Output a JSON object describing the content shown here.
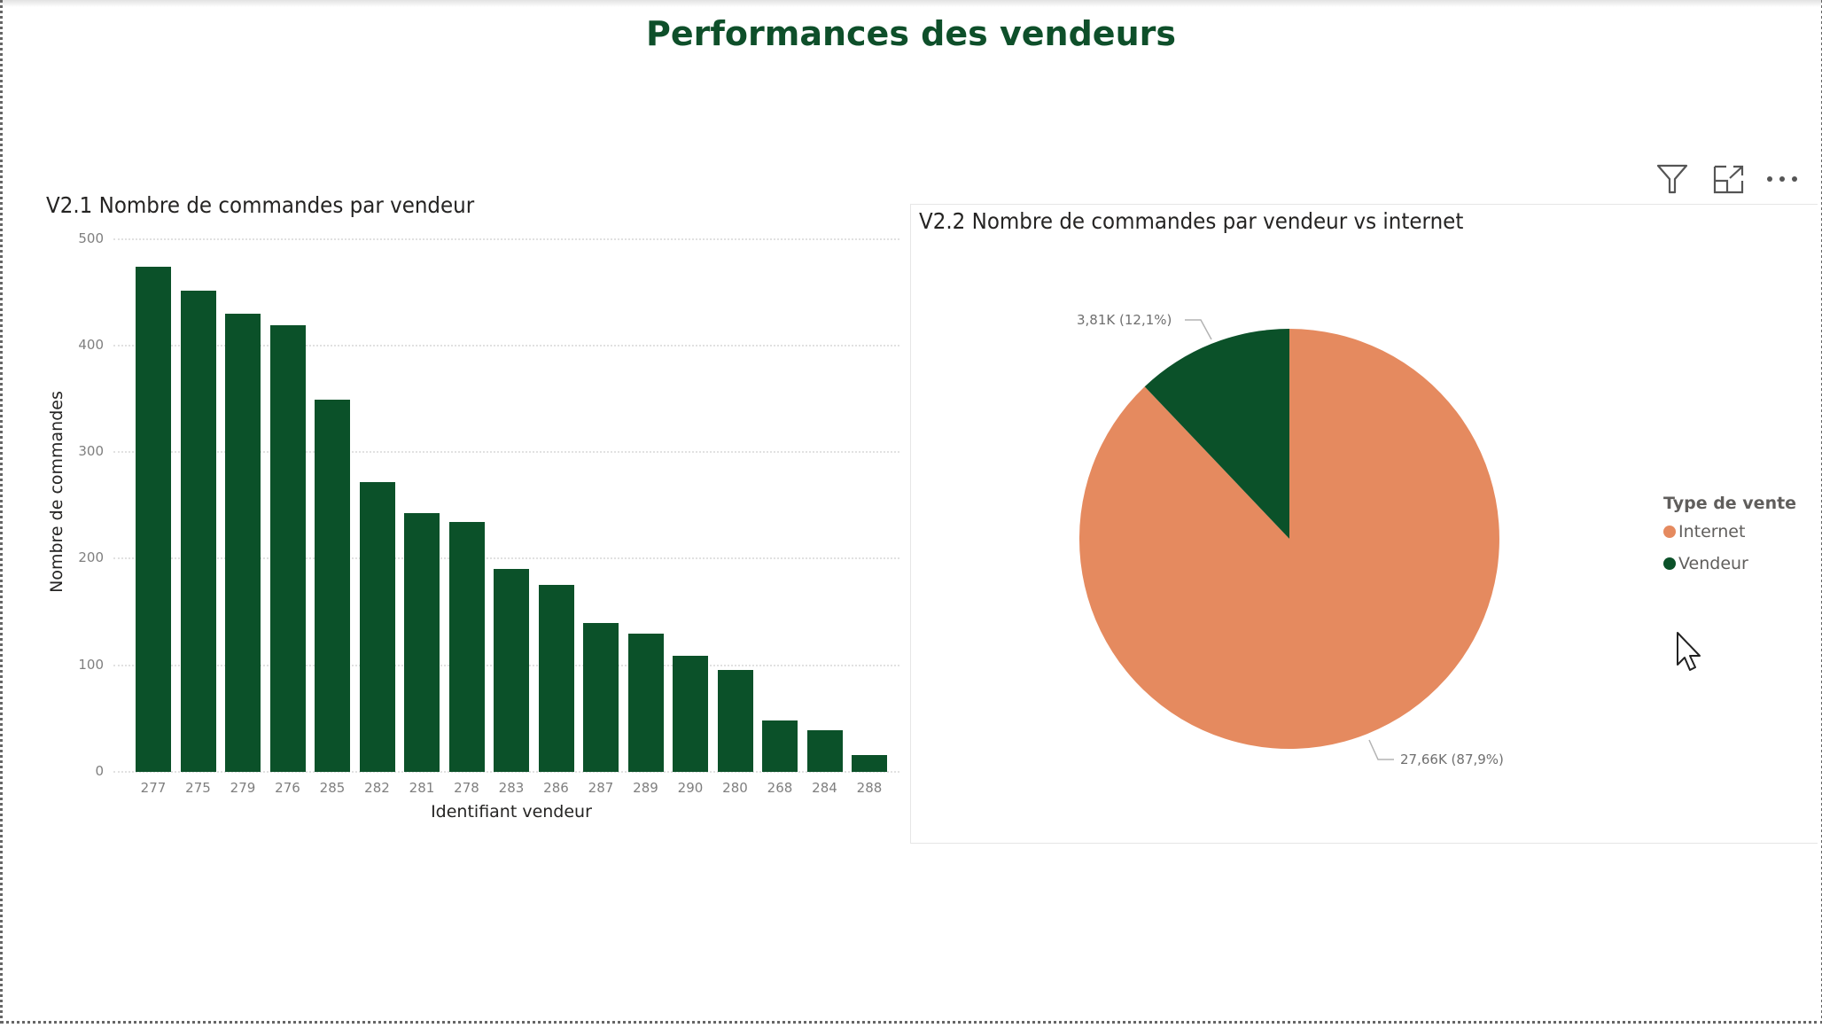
{
  "page": {
    "title": "Performances des vendeurs"
  },
  "colors": {
    "title": "#0e4f2a",
    "bar": "#0b5129",
    "internet": "#e58a5f",
    "vendeur": "#0b5129",
    "axis_text": "#7f7f7f",
    "gridline": "#e1e1e1"
  },
  "bar_visual": {
    "title": "V2.1 Nombre de commandes par vendeur",
    "y_axis_title": "Nombre de commandes",
    "x_axis_title": "Identifiant vendeur",
    "y_ticks": [
      "500",
      "400",
      "300",
      "200",
      "100",
      "0"
    ]
  },
  "pie_visual": {
    "title": "V2.2 Nombre de commandes par vendeur vs internet",
    "label_vendeur": "3,81K (12,1%)",
    "label_internet": "27,66K (87,9%)",
    "legend": {
      "title": "Type de vente",
      "items": [
        {
          "label": "Internet",
          "color": "#e58a5f"
        },
        {
          "label": "Vendeur",
          "color": "#0b5129"
        }
      ]
    },
    "header_icons": [
      "filter-icon",
      "focus-mode-icon",
      "more-options-icon"
    ]
  },
  "chart_data": [
    {
      "type": "bar",
      "title": "V2.1 Nombre de commandes par vendeur",
      "xlabel": "Identifiant vendeur",
      "ylabel": "Nombre de commandes",
      "categories": [
        "277",
        "275",
        "279",
        "276",
        "285",
        "282",
        "281",
        "278",
        "283",
        "286",
        "287",
        "289",
        "290",
        "280",
        "268",
        "284",
        "288"
      ],
      "values": [
        474,
        451,
        430,
        419,
        349,
        272,
        243,
        234,
        190,
        175,
        140,
        130,
        109,
        96,
        48,
        39,
        16
      ],
      "ylim": [
        0,
        500
      ],
      "yticks": [
        0,
        100,
        200,
        300,
        400,
        500
      ],
      "grid": true,
      "color": "#0b5129"
    },
    {
      "type": "pie",
      "title": "V2.2 Nombre de commandes par vendeur vs internet",
      "legend_title": "Type de vente",
      "legend_position": "right",
      "categories": [
        "Internet",
        "Vendeur"
      ],
      "values": [
        27660,
        3810
      ],
      "labels": [
        "27,66K (87,9%)",
        "3,81K (12,1%)"
      ],
      "percentages": [
        87.9,
        12.1
      ],
      "colors": [
        "#e58a5f",
        "#0b5129"
      ]
    }
  ]
}
